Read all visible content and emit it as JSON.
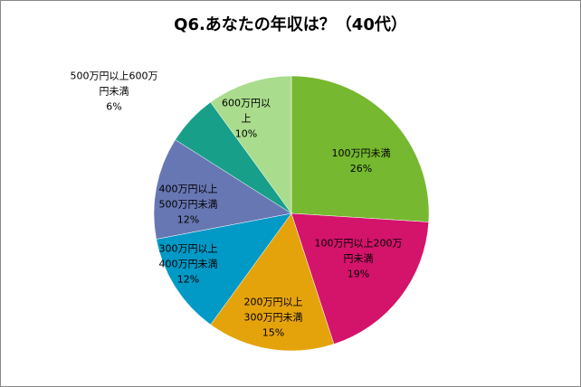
{
  "chart_data": {
    "type": "pie",
    "title": "Q6.あなたの年収は？（40代）",
    "categories": [
      "100万円未満",
      "100万円以上200万\n円未満",
      "200万円以上\n300万円未満",
      "300万円以上\n400万円未満",
      "400万円以上\n500万円未満",
      "500万円以上600万\n円未満",
      "600万円以\n上"
    ],
    "values": [
      26,
      19,
      15,
      12,
      12,
      6,
      10
    ],
    "value_labels": [
      "26%",
      "19%",
      "15%",
      "12%",
      "12%",
      "6%",
      "10%"
    ],
    "colors": [
      "#76b82f",
      "#d4136b",
      "#e5a30b",
      "#0199c6",
      "#6777b3",
      "#179f8a",
      "#aadc8e"
    ],
    "start_angle_deg": 0,
    "direction": "clockwise",
    "legend": "none"
  }
}
